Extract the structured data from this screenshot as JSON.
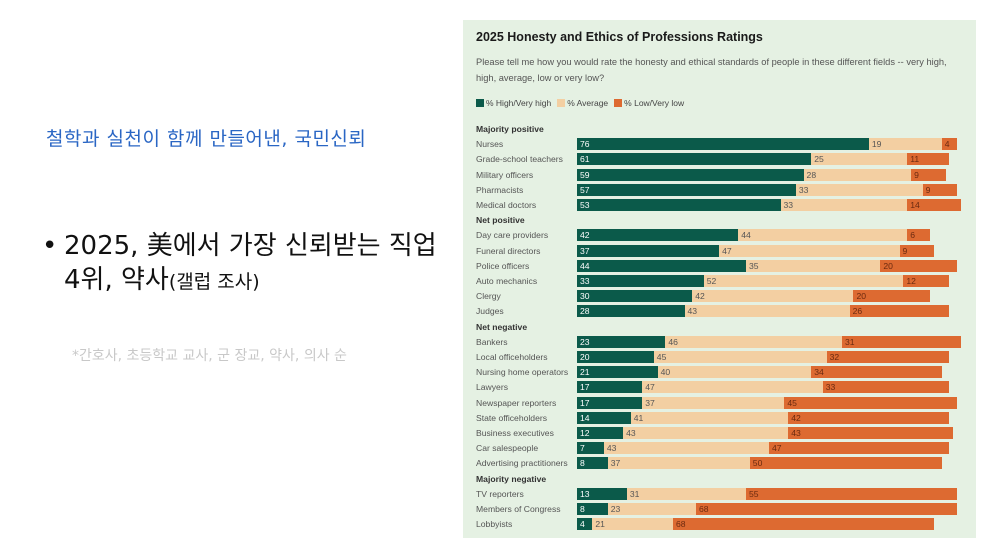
{
  "slide": {
    "heading": "철학과 실천이 함께 만들어낸, 국민신뢰",
    "bullet_main": "2025, 美에서 가장 신뢰받는 직업 4위, 약사",
    "bullet_source": "(갤럽 조사)",
    "footnote": "*간호사, 초등학교 교사, 군 장교, 약사, 의사 순",
    "heading_color": "#2a66c4"
  },
  "chart_data": {
    "type": "bar",
    "stacked": true,
    "orientation": "horizontal",
    "title": "2025 Honesty and Ethics of Professions Ratings",
    "subtitle": "Please tell me how you would rate the honesty and ethical standards of people in these different fields -- very high, high, average, low or very low?",
    "legend_position": "top-left",
    "series": [
      {
        "name": "% High/Very high",
        "color": "#0b5a4a"
      },
      {
        "name": "% Average",
        "color": "#f3cfa2"
      },
      {
        "name": "% Low/Very low",
        "color": "#dd6a31"
      }
    ],
    "groups": [
      {
        "name": "Majority positive",
        "items": [
          {
            "label": "Nurses",
            "values": [
              76,
              19,
              4
            ]
          },
          {
            "label": "Grade-school teachers",
            "values": [
              61,
              25,
              11
            ]
          },
          {
            "label": "Military officers",
            "values": [
              59,
              28,
              9
            ]
          },
          {
            "label": "Pharmacists",
            "values": [
              57,
              33,
              9
            ]
          },
          {
            "label": "Medical doctors",
            "values": [
              53,
              33,
              14
            ]
          }
        ]
      },
      {
        "name": "Net positive",
        "items": [
          {
            "label": "Day care providers",
            "values": [
              42,
              44,
              6
            ]
          },
          {
            "label": "Funeral directors",
            "values": [
              37,
              47,
              9
            ]
          },
          {
            "label": "Police officers",
            "values": [
              44,
              35,
              20
            ]
          },
          {
            "label": "Auto mechanics",
            "values": [
              33,
              52,
              12
            ]
          },
          {
            "label": "Clergy",
            "values": [
              30,
              42,
              20
            ]
          },
          {
            "label": "Judges",
            "values": [
              28,
              43,
              26
            ]
          }
        ]
      },
      {
        "name": "Net negative",
        "items": [
          {
            "label": "Bankers",
            "values": [
              23,
              46,
              31
            ]
          },
          {
            "label": "Local officeholders",
            "values": [
              20,
              45,
              32
            ]
          },
          {
            "label": "Nursing home operators",
            "values": [
              21,
              40,
              34
            ]
          },
          {
            "label": "Lawyers",
            "values": [
              17,
              47,
              33
            ]
          },
          {
            "label": "Newspaper reporters",
            "values": [
              17,
              37,
              45
            ]
          },
          {
            "label": "State officeholders",
            "values": [
              14,
              41,
              42
            ]
          },
          {
            "label": "Business executives",
            "values": [
              12,
              43,
              43
            ]
          },
          {
            "label": "Car salespeople",
            "values": [
              7,
              43,
              47
            ]
          },
          {
            "label": "Advertising practitioners",
            "values": [
              8,
              37,
              50
            ]
          }
        ]
      },
      {
        "name": "Majority negative",
        "items": [
          {
            "label": "TV reporters",
            "values": [
              13,
              31,
              55
            ]
          },
          {
            "label": "Members of Congress",
            "values": [
              8,
              23,
              68
            ]
          },
          {
            "label": "Lobbyists",
            "values": [
              4,
              21,
              68
            ]
          }
        ]
      }
    ]
  }
}
